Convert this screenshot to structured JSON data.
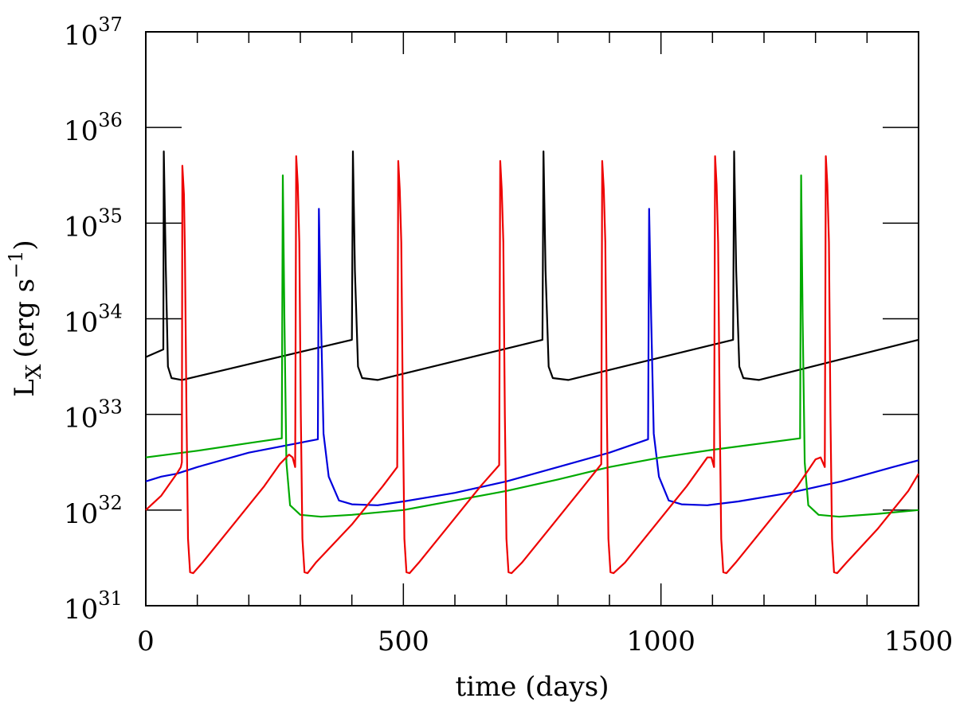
{
  "chart_data": {
    "type": "line",
    "title": "",
    "xlabel": "time (days)",
    "ylabel_main": "L",
    "ylabel_sub": "X",
    "ylabel_units": "(erg s",
    "ylabel_units_exp": "−1",
    "ylabel_units_close": ")",
    "xlim": [
      0,
      1500
    ],
    "ylim_log10": [
      31,
      37
    ],
    "x_tick_labels": [
      "0",
      "500",
      "1000",
      "1500"
    ],
    "y_tick_base": "10",
    "y_tick_exponents": [
      "31",
      "32",
      "33",
      "34",
      "35",
      "36",
      "37"
    ],
    "series": [
      {
        "name": "black",
        "color": "#000000",
        "points": [
          [
            0,
            33.6
          ],
          [
            34,
            33.68
          ],
          [
            35,
            35.75
          ],
          [
            39,
            34.5
          ],
          [
            43,
            33.5
          ],
          [
            50,
            33.38
          ],
          [
            70,
            33.36
          ],
          [
            400,
            33.78
          ],
          [
            402,
            35.75
          ],
          [
            406,
            34.5
          ],
          [
            412,
            33.5
          ],
          [
            420,
            33.38
          ],
          [
            450,
            33.36
          ],
          [
            770,
            33.78
          ],
          [
            772,
            35.75
          ],
          [
            776,
            34.5
          ],
          [
            782,
            33.5
          ],
          [
            790,
            33.38
          ],
          [
            820,
            33.36
          ],
          [
            1140,
            33.78
          ],
          [
            1142,
            35.75
          ],
          [
            1146,
            34.5
          ],
          [
            1152,
            33.5
          ],
          [
            1160,
            33.38
          ],
          [
            1190,
            33.36
          ],
          [
            1500,
            33.78
          ]
        ]
      },
      {
        "name": "blue",
        "color": "#0000dd",
        "points": [
          [
            0,
            32.3
          ],
          [
            30,
            32.35
          ],
          [
            60,
            32.38
          ],
          [
            100,
            32.45
          ],
          [
            200,
            32.6
          ],
          [
            334,
            32.74
          ],
          [
            336,
            35.15
          ],
          [
            340,
            34.0
          ],
          [
            345,
            32.8
          ],
          [
            355,
            32.35
          ],
          [
            375,
            32.1
          ],
          [
            400,
            32.06
          ],
          [
            450,
            32.05
          ],
          [
            500,
            32.09
          ],
          [
            600,
            32.18
          ],
          [
            700,
            32.3
          ],
          [
            800,
            32.45
          ],
          [
            900,
            32.6
          ],
          [
            975,
            32.74
          ],
          [
            977,
            35.15
          ],
          [
            981,
            34.0
          ],
          [
            986,
            32.8
          ],
          [
            996,
            32.35
          ],
          [
            1015,
            32.1
          ],
          [
            1040,
            32.06
          ],
          [
            1090,
            32.05
          ],
          [
            1150,
            32.09
          ],
          [
            1250,
            32.18
          ],
          [
            1350,
            32.3
          ],
          [
            1450,
            32.45
          ],
          [
            1500,
            32.52
          ]
        ]
      },
      {
        "name": "green",
        "color": "#00aa00",
        "points": [
          [
            0,
            32.55
          ],
          [
            100,
            32.62
          ],
          [
            200,
            32.7
          ],
          [
            264,
            32.75
          ],
          [
            266,
            35.5
          ],
          [
            269,
            34.0
          ],
          [
            273,
            32.5
          ],
          [
            280,
            32.05
          ],
          [
            300,
            31.95
          ],
          [
            340,
            31.93
          ],
          [
            400,
            31.95
          ],
          [
            500,
            32.0
          ],
          [
            600,
            32.1
          ],
          [
            700,
            32.2
          ],
          [
            800,
            32.32
          ],
          [
            900,
            32.45
          ],
          [
            1000,
            32.55
          ],
          [
            1100,
            32.63
          ],
          [
            1270,
            32.75
          ],
          [
            1272,
            35.5
          ],
          [
            1275,
            34.0
          ],
          [
            1279,
            32.5
          ],
          [
            1286,
            32.05
          ],
          [
            1306,
            31.95
          ],
          [
            1346,
            31.93
          ],
          [
            1420,
            31.96
          ],
          [
            1500,
            32.0
          ]
        ]
      },
      {
        "name": "red",
        "color": "#ee0000",
        "points": [
          [
            0,
            32.0
          ],
          [
            30,
            32.15
          ],
          [
            60,
            32.38
          ],
          [
            68,
            32.45
          ],
          [
            70,
            32.5
          ],
          [
            71,
            35.6
          ],
          [
            74,
            35.3
          ],
          [
            76,
            34.7
          ],
          [
            79,
            33.0
          ],
          [
            82,
            31.7
          ],
          [
            86,
            31.35
          ],
          [
            92,
            31.34
          ],
          [
            110,
            31.45
          ],
          [
            170,
            31.85
          ],
          [
            230,
            32.25
          ],
          [
            260,
            32.48
          ],
          [
            278,
            32.58
          ],
          [
            285,
            32.55
          ],
          [
            290,
            32.45
          ],
          [
            292,
            35.7
          ],
          [
            295,
            35.4
          ],
          [
            298,
            34.8
          ],
          [
            301,
            33.0
          ],
          [
            304,
            31.7
          ],
          [
            308,
            31.35
          ],
          [
            314,
            31.34
          ],
          [
            330,
            31.45
          ],
          [
            400,
            31.85
          ],
          [
            460,
            32.25
          ],
          [
            488,
            32.45
          ],
          [
            490,
            35.65
          ],
          [
            493,
            35.35
          ],
          [
            496,
            34.8
          ],
          [
            499,
            33.0
          ],
          [
            502,
            31.7
          ],
          [
            506,
            31.35
          ],
          [
            512,
            31.34
          ],
          [
            530,
            31.45
          ],
          [
            590,
            31.85
          ],
          [
            650,
            32.25
          ],
          [
            686,
            32.47
          ],
          [
            688,
            35.65
          ],
          [
            691,
            35.35
          ],
          [
            694,
            34.8
          ],
          [
            697,
            33.0
          ],
          [
            700,
            31.7
          ],
          [
            704,
            31.35
          ],
          [
            710,
            31.34
          ],
          [
            730,
            31.45
          ],
          [
            790,
            31.85
          ],
          [
            850,
            32.25
          ],
          [
            884,
            32.48
          ],
          [
            886,
            35.65
          ],
          [
            889,
            35.35
          ],
          [
            892,
            34.8
          ],
          [
            895,
            33.0
          ],
          [
            898,
            31.7
          ],
          [
            902,
            31.35
          ],
          [
            908,
            31.34
          ],
          [
            930,
            31.45
          ],
          [
            990,
            31.85
          ],
          [
            1050,
            32.25
          ],
          [
            1090,
            32.55
          ],
          [
            1098,
            32.55
          ],
          [
            1103,
            32.45
          ],
          [
            1105,
            35.7
          ],
          [
            1108,
            35.4
          ],
          [
            1111,
            34.8
          ],
          [
            1114,
            33.0
          ],
          [
            1117,
            31.7
          ],
          [
            1121,
            31.35
          ],
          [
            1127,
            31.34
          ],
          [
            1145,
            31.45
          ],
          [
            1205,
            31.85
          ],
          [
            1265,
            32.25
          ],
          [
            1300,
            32.53
          ],
          [
            1310,
            32.55
          ],
          [
            1318,
            32.45
          ],
          [
            1320,
            35.7
          ],
          [
            1323,
            35.4
          ],
          [
            1326,
            34.8
          ],
          [
            1329,
            33.0
          ],
          [
            1332,
            31.7
          ],
          [
            1336,
            31.35
          ],
          [
            1342,
            31.34
          ],
          [
            1360,
            31.45
          ],
          [
            1420,
            31.8
          ],
          [
            1480,
            32.2
          ],
          [
            1500,
            32.38
          ]
        ]
      }
    ]
  }
}
